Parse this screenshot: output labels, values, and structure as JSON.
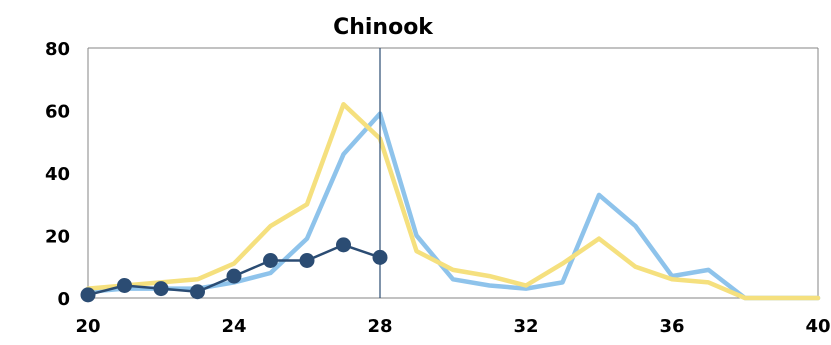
{
  "chart_data": {
    "type": "line",
    "title": "Chinook",
    "xlabel": "",
    "ylabel": "",
    "xlim": [
      20,
      40
    ],
    "ylim": [
      0,
      80
    ],
    "xticks": [
      20,
      24,
      28,
      32,
      36,
      40
    ],
    "yticks": [
      0,
      20,
      40,
      60,
      80
    ],
    "grid": false,
    "legend": "none",
    "reference_line_x": 28,
    "series": [
      {
        "color": "#8EC3EB",
        "marker": "none",
        "points": [
          [
            20,
            2
          ],
          [
            21,
            3
          ],
          [
            22,
            3
          ],
          [
            23,
            3
          ],
          [
            24,
            5
          ],
          [
            25,
            8
          ],
          [
            26,
            19
          ],
          [
            27,
            46
          ],
          [
            28,
            59
          ],
          [
            29,
            20
          ],
          [
            30,
            6
          ],
          [
            31,
            4
          ],
          [
            32,
            3
          ],
          [
            33,
            5
          ],
          [
            34,
            33
          ],
          [
            35,
            23
          ],
          [
            36,
            7
          ],
          [
            37,
            9
          ],
          [
            38,
            0
          ],
          [
            39,
            0
          ],
          [
            40,
            0
          ]
        ]
      },
      {
        "color": "#F5E07E",
        "marker": "none",
        "points": [
          [
            20,
            3
          ],
          [
            21,
            4
          ],
          [
            22,
            5
          ],
          [
            23,
            6
          ],
          [
            24,
            11
          ],
          [
            25,
            23
          ],
          [
            26,
            30
          ],
          [
            27,
            62
          ],
          [
            28,
            51
          ],
          [
            29,
            15
          ],
          [
            30,
            9
          ],
          [
            31,
            7
          ],
          [
            32,
            4
          ],
          [
            33,
            11
          ],
          [
            34,
            19
          ],
          [
            35,
            10
          ],
          [
            36,
            6
          ],
          [
            37,
            5
          ],
          [
            38,
            0
          ],
          [
            39,
            0
          ],
          [
            40,
            0
          ]
        ]
      },
      {
        "color": "#2B4C73",
        "marker": "circle",
        "points": [
          [
            20,
            1
          ],
          [
            21,
            4
          ],
          [
            22,
            3
          ],
          [
            23,
            2
          ],
          [
            24,
            7
          ],
          [
            25,
            12
          ],
          [
            26,
            12
          ],
          [
            27,
            17
          ],
          [
            28,
            13
          ]
        ]
      }
    ]
  }
}
